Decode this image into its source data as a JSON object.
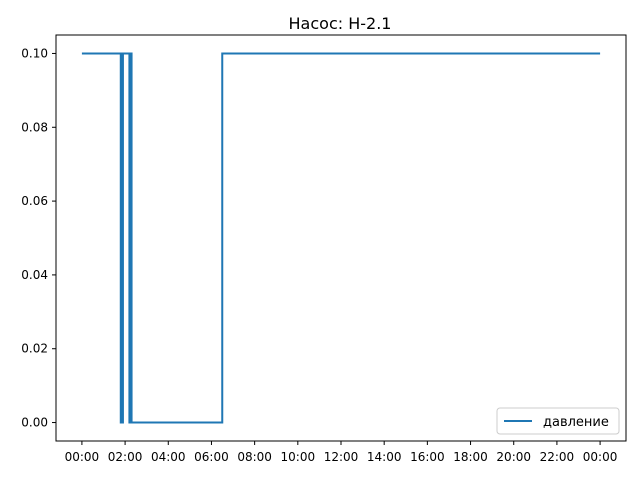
{
  "chart_data": {
    "type": "line",
    "title": "Насос: Н-2.1",
    "xlabel": "",
    "ylabel": "",
    "x_unit": "hours",
    "xlim": [
      -1.2,
      25.2
    ],
    "ylim": [
      -0.005,
      0.105
    ],
    "x_ticks": [
      0,
      2,
      4,
      6,
      8,
      10,
      12,
      14,
      16,
      18,
      20,
      22,
      24
    ],
    "x_tick_labels": [
      "00:00",
      "02:00",
      "04:00",
      "06:00",
      "08:00",
      "10:00",
      "12:00",
      "14:00",
      "16:00",
      "18:00",
      "20:00",
      "22:00",
      "00:00"
    ],
    "y_ticks": [
      0.0,
      0.02,
      0.04,
      0.06,
      0.08,
      0.1
    ],
    "y_tick_labels": [
      "0.00",
      "0.02",
      "0.04",
      "0.06",
      "0.08",
      "0.10"
    ],
    "grid": false,
    "legend_position": "lower-right",
    "series": [
      {
        "name": "давление",
        "color": "#1f77b4",
        "x": [
          0,
          1.8,
          1.8,
          1.82,
          1.82,
          1.84,
          1.84,
          1.86,
          1.86,
          1.88,
          1.88,
          1.9,
          1.9,
          2.2,
          2.2,
          2.25,
          2.25,
          2.3,
          2.3,
          6.5,
          6.5,
          24
        ],
        "y": [
          0.1,
          0.1,
          0.0,
          0.0,
          0.1,
          0.1,
          0.0,
          0.0,
          0.1,
          0.1,
          0.0,
          0.0,
          0.1,
          0.1,
          0.0,
          0.0,
          0.1,
          0.1,
          0.0,
          0.0,
          0.1,
          0.1
        ]
      }
    ]
  }
}
